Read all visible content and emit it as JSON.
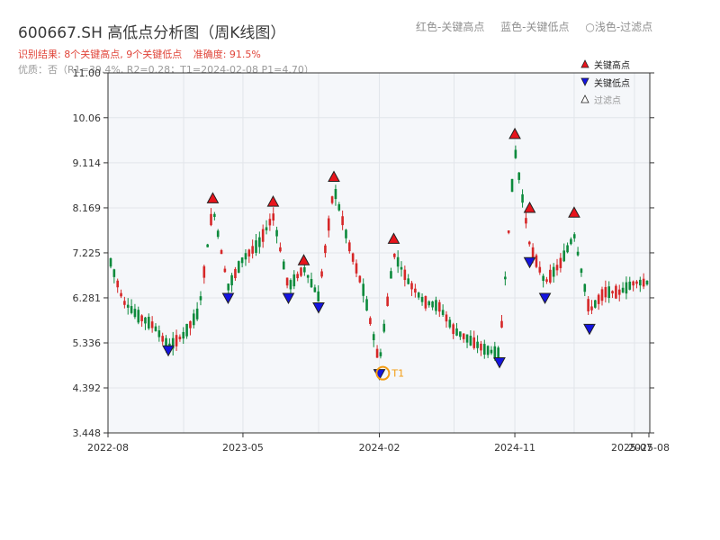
{
  "header": {
    "title": "600667.SH 高低点分析图（周K线图）",
    "legend_red": "红色-关键高点",
    "legend_blue": "蓝色-关键低点",
    "legend_light": "○浅色-过滤点",
    "result": [
      "识别结果: 8个关键高点, 9个关键低点",
      "准确度: 91.5%"
    ],
    "quality": "优质：否（R1=39.4%, R2=0.28；T1=2024-02-08 P1=4.70）"
  },
  "colors": {
    "up": "#d62728",
    "down": "#0c8a3c",
    "high_marker": "#e8141c",
    "low_marker": "#1414e0",
    "t1": "#f39c12",
    "plot_bg": "#f5f7fa",
    "grid": "#e2e5ea"
  },
  "chart_data": {
    "type": "candlestick",
    "title": "600667.SH 高低点分析图（周K线图）",
    "ylim": [
      3.448,
      11.0
    ],
    "y_ticks": [
      "3.448",
      "4.392",
      "5.336",
      "6.281",
      "7.225",
      "8.169",
      "9.114",
      "10.06",
      "11.00"
    ],
    "x_ticks": [
      "2022-08",
      "2023-05",
      "2024-02",
      "2024-11",
      "2025-07",
      "2025-08"
    ],
    "legend": [
      "关键高点",
      "关键低点",
      "过滤点"
    ],
    "key_highs": [
      {
        "date": "2023-03",
        "price": 8.35
      },
      {
        "date": "2023-07",
        "price": 8.28
      },
      {
        "date": "2023-09",
        "price": 7.05
      },
      {
        "date": "2023-11",
        "price": 8.8
      },
      {
        "date": "2024-03",
        "price": 7.5
      },
      {
        "date": "2024-11",
        "price": 9.7
      },
      {
        "date": "2024-12",
        "price": 8.15
      },
      {
        "date": "2025-03",
        "price": 8.05
      }
    ],
    "key_lows": [
      {
        "date": "2022-12",
        "price": 5.2
      },
      {
        "date": "2023-04",
        "price": 6.3
      },
      {
        "date": "2023-08",
        "price": 6.3
      },
      {
        "date": "2023-10",
        "price": 6.1
      },
      {
        "date": "2024-02",
        "price": 4.7
      },
      {
        "date": "2024-10",
        "price": 4.95
      },
      {
        "date": "2024-12",
        "price": 7.05
      },
      {
        "date": "2025-01",
        "price": 6.3
      },
      {
        "date": "2025-04",
        "price": 5.65
      }
    ],
    "t1": {
      "label": "T1",
      "date": "2024-02-08",
      "price": 4.7
    },
    "price_path": [
      {
        "date": "2022-08",
        "price": 7.2
      },
      {
        "date": "2022-09",
        "price": 6.2
      },
      {
        "date": "2022-10",
        "price": 5.9
      },
      {
        "date": "2022-11",
        "price": 5.7
      },
      {
        "date": "2022-12",
        "price": 5.25
      },
      {
        "date": "2023-01",
        "price": 5.5
      },
      {
        "date": "2023-02",
        "price": 6.0
      },
      {
        "date": "2023-03",
        "price": 8.2
      },
      {
        "date": "2023-04",
        "price": 6.5
      },
      {
        "date": "2023-05",
        "price": 7.1
      },
      {
        "date": "2023-06",
        "price": 7.4
      },
      {
        "date": "2023-07",
        "price": 8.0
      },
      {
        "date": "2023-08",
        "price": 6.5
      },
      {
        "date": "2023-09",
        "price": 6.9
      },
      {
        "date": "2023-10",
        "price": 6.3
      },
      {
        "date": "2023-11",
        "price": 8.6
      },
      {
        "date": "2023-12",
        "price": 7.4
      },
      {
        "date": "2024-01",
        "price": 6.4
      },
      {
        "date": "2024-02",
        "price": 4.9
      },
      {
        "date": "2024-03",
        "price": 7.2
      },
      {
        "date": "2024-04",
        "price": 6.6
      },
      {
        "date": "2024-05",
        "price": 6.2
      },
      {
        "date": "2024-06",
        "price": 6.1
      },
      {
        "date": "2024-07",
        "price": 5.6
      },
      {
        "date": "2024-08",
        "price": 5.4
      },
      {
        "date": "2024-09",
        "price": 5.2
      },
      {
        "date": "2024-10",
        "price": 5.1
      },
      {
        "date": "2024-11",
        "price": 9.4
      },
      {
        "date": "2024-12",
        "price": 7.4
      },
      {
        "date": "2025-01",
        "price": 6.6
      },
      {
        "date": "2025-02",
        "price": 7.0
      },
      {
        "date": "2025-03",
        "price": 7.6
      },
      {
        "date": "2025-04",
        "price": 6.0
      },
      {
        "date": "2025-05",
        "price": 6.4
      },
      {
        "date": "2025-06",
        "price": 6.4
      },
      {
        "date": "2025-07",
        "price": 6.6
      },
      {
        "date": "2025-08",
        "price": 6.6
      }
    ]
  }
}
